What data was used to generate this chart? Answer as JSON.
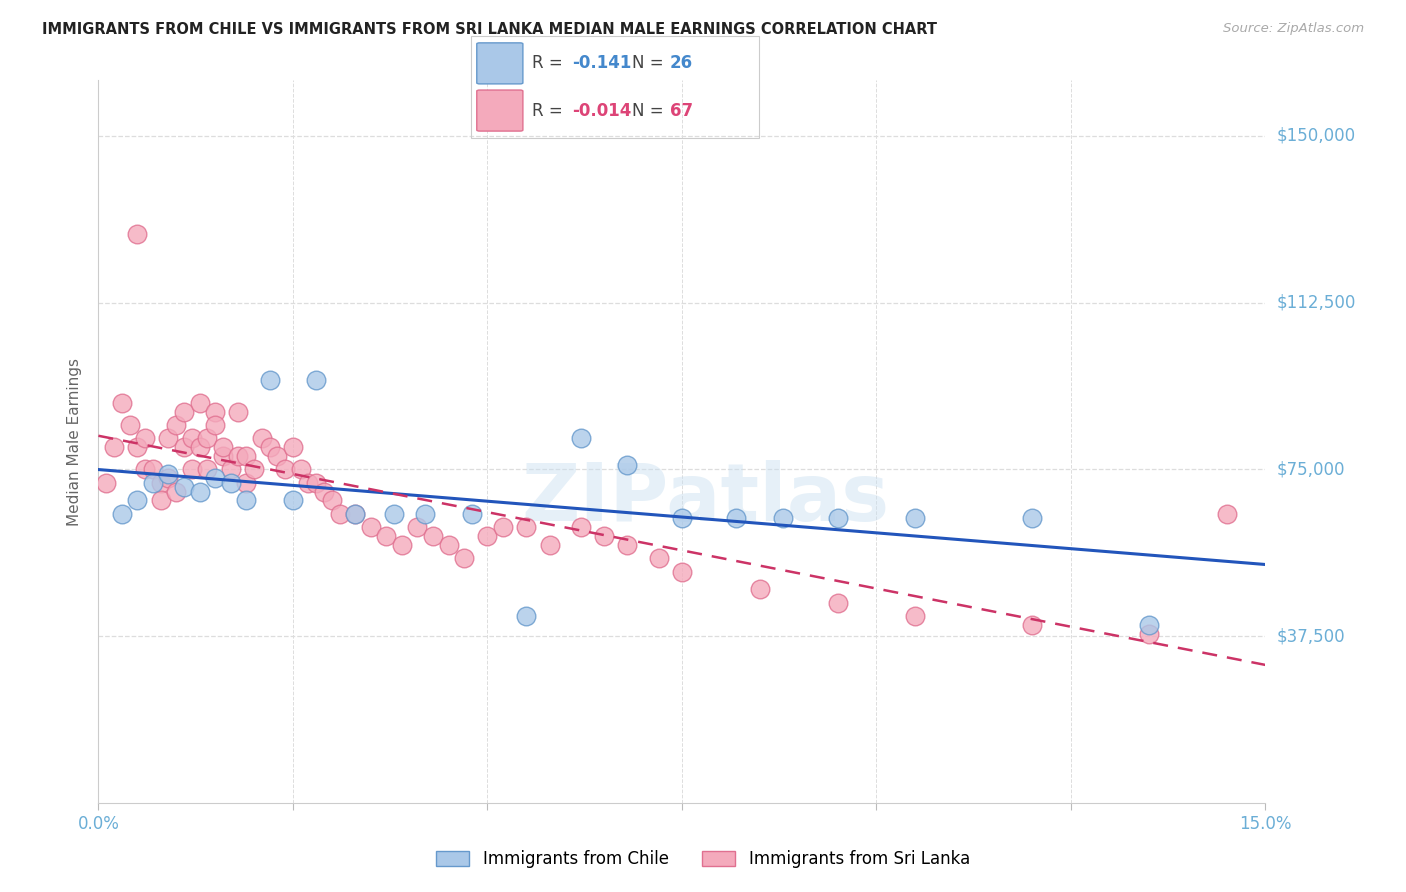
{
  "title": "IMMIGRANTS FROM CHILE VS IMMIGRANTS FROM SRI LANKA MEDIAN MALE EARNINGS CORRELATION CHART",
  "source": "Source: ZipAtlas.com",
  "ylabel": "Median Male Earnings",
  "xlim": [
    0.0,
    0.15
  ],
  "ylim": [
    0,
    162500
  ],
  "yticks": [
    37500,
    75000,
    112500,
    150000
  ],
  "ytick_labels": [
    "$37,500",
    "$75,000",
    "$112,500",
    "$150,000"
  ],
  "xtick_positions": [
    0.0,
    0.025,
    0.05,
    0.075,
    0.1,
    0.125,
    0.15
  ],
  "xtick_labels": [
    "0.0%",
    "",
    "",
    "",
    "",
    "",
    "15.0%"
  ],
  "chile_face": "#aac8e8",
  "chile_edge": "#6699cc",
  "srilanka_face": "#f4aabc",
  "srilanka_edge": "#e07090",
  "trend_chile": "#2255bb",
  "trend_srilanka": "#cc3366",
  "r_chile": "-0.141",
  "n_chile": "26",
  "r_srilanka": "-0.014",
  "n_srilanka": "67",
  "accent_blue": "#4488cc",
  "accent_pink": "#dd4477",
  "watermark": "ZIPatlas",
  "bg": "#ffffff",
  "grid_color": "#dddddd",
  "tick_color": "#6baed6",
  "ylabel_color": "#666666",
  "title_color": "#222222",
  "source_color": "#aaaaaa",
  "legend_bottom_chile": "Immigrants from Chile",
  "legend_bottom_srilanka": "Immigrants from Sri Lanka",
  "chile_x": [
    0.003,
    0.005,
    0.007,
    0.009,
    0.011,
    0.013,
    0.015,
    0.017,
    0.019,
    0.022,
    0.025,
    0.028,
    0.033,
    0.038,
    0.042,
    0.048,
    0.055,
    0.062,
    0.068,
    0.075,
    0.082,
    0.088,
    0.095,
    0.105,
    0.12,
    0.135
  ],
  "chile_y": [
    65000,
    68000,
    72000,
    74000,
    71000,
    70000,
    73000,
    72000,
    68000,
    95000,
    68000,
    95000,
    65000,
    65000,
    65000,
    65000,
    42000,
    82000,
    76000,
    64000,
    64000,
    64000,
    64000,
    64000,
    64000,
    40000
  ],
  "srilanka_x": [
    0.001,
    0.002,
    0.003,
    0.004,
    0.005,
    0.005,
    0.006,
    0.006,
    0.007,
    0.008,
    0.008,
    0.009,
    0.009,
    0.01,
    0.01,
    0.011,
    0.011,
    0.012,
    0.012,
    0.013,
    0.013,
    0.014,
    0.014,
    0.015,
    0.015,
    0.016,
    0.016,
    0.017,
    0.018,
    0.018,
    0.019,
    0.019,
    0.02,
    0.021,
    0.022,
    0.023,
    0.024,
    0.025,
    0.026,
    0.027,
    0.028,
    0.029,
    0.03,
    0.031,
    0.033,
    0.035,
    0.037,
    0.039,
    0.041,
    0.043,
    0.045,
    0.047,
    0.05,
    0.052,
    0.055,
    0.058,
    0.062,
    0.065,
    0.068,
    0.072,
    0.075,
    0.085,
    0.095,
    0.105,
    0.12,
    0.135,
    0.145
  ],
  "srilanka_y": [
    72000,
    80000,
    90000,
    85000,
    80000,
    128000,
    75000,
    82000,
    75000,
    72000,
    68000,
    73000,
    82000,
    70000,
    85000,
    80000,
    88000,
    75000,
    82000,
    80000,
    90000,
    75000,
    82000,
    88000,
    85000,
    78000,
    80000,
    75000,
    78000,
    88000,
    72000,
    78000,
    75000,
    82000,
    80000,
    78000,
    75000,
    80000,
    75000,
    72000,
    72000,
    70000,
    68000,
    65000,
    65000,
    62000,
    60000,
    58000,
    62000,
    60000,
    58000,
    55000,
    60000,
    62000,
    62000,
    58000,
    62000,
    60000,
    58000,
    55000,
    52000,
    48000,
    45000,
    42000,
    40000,
    38000,
    65000
  ]
}
